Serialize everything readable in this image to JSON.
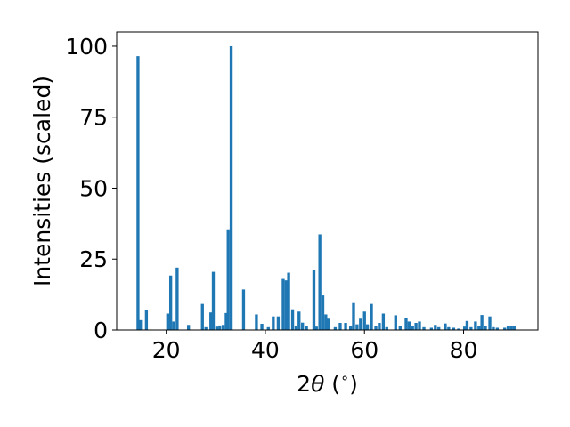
{
  "chart_data": {
    "type": "bar",
    "xlabel": "2θ (°)",
    "xlabel_parts": {
      "prefix": "2",
      "symbol": "θ",
      "suffix": " (",
      "superscript": "∘",
      "end": ")"
    },
    "ylabel": "Intensities (scaled)",
    "xlim": [
      10,
      95
    ],
    "ylim": [
      0,
      105
    ],
    "xticks": [
      20,
      40,
      60,
      80
    ],
    "yticks": [
      0,
      25,
      50,
      75,
      100
    ],
    "bar_width_data": 0.6,
    "bar_color": "#1f77b4",
    "grid": false,
    "legend": "none",
    "bars": [
      {
        "x": 14.3,
        "y": 96.5
      },
      {
        "x": 14.8,
        "y": 3.5
      },
      {
        "x": 16.0,
        "y": 7.0
      },
      {
        "x": 20.3,
        "y": 5.8
      },
      {
        "x": 20.9,
        "y": 19.2
      },
      {
        "x": 21.5,
        "y": 3.0
      },
      {
        "x": 22.2,
        "y": 22.0
      },
      {
        "x": 24.5,
        "y": 1.8
      },
      {
        "x": 27.3,
        "y": 9.2
      },
      {
        "x": 28.0,
        "y": 1.0
      },
      {
        "x": 29.0,
        "y": 6.2
      },
      {
        "x": 29.5,
        "y": 20.5
      },
      {
        "x": 30.2,
        "y": 1.2
      },
      {
        "x": 30.8,
        "y": 1.6
      },
      {
        "x": 31.5,
        "y": 1.8
      },
      {
        "x": 32.1,
        "y": 6.0
      },
      {
        "x": 32.5,
        "y": 35.5
      },
      {
        "x": 33.1,
        "y": 100.0
      },
      {
        "x": 35.6,
        "y": 14.3
      },
      {
        "x": 38.2,
        "y": 5.5
      },
      {
        "x": 39.3,
        "y": 2.2
      },
      {
        "x": 40.6,
        "y": 1.0
      },
      {
        "x": 41.6,
        "y": 4.8
      },
      {
        "x": 42.6,
        "y": 4.8
      },
      {
        "x": 43.6,
        "y": 18.0
      },
      {
        "x": 44.2,
        "y": 17.5
      },
      {
        "x": 44.7,
        "y": 20.2
      },
      {
        "x": 45.5,
        "y": 7.3
      },
      {
        "x": 46.2,
        "y": 1.5
      },
      {
        "x": 46.8,
        "y": 6.5
      },
      {
        "x": 47.5,
        "y": 2.6
      },
      {
        "x": 48.3,
        "y": 1.5
      },
      {
        "x": 49.8,
        "y": 21.2
      },
      {
        "x": 50.3,
        "y": 1.2
      },
      {
        "x": 51.0,
        "y": 33.7
      },
      {
        "x": 51.6,
        "y": 12.2
      },
      {
        "x": 52.2,
        "y": 5.5
      },
      {
        "x": 52.8,
        "y": 4.0
      },
      {
        "x": 54.1,
        "y": 1.0
      },
      {
        "x": 55.1,
        "y": 2.5
      },
      {
        "x": 56.2,
        "y": 2.5
      },
      {
        "x": 57.2,
        "y": 1.5
      },
      {
        "x": 57.8,
        "y": 9.5
      },
      {
        "x": 58.5,
        "y": 2.0
      },
      {
        "x": 59.2,
        "y": 4.0
      },
      {
        "x": 60.0,
        "y": 6.5
      },
      {
        "x": 60.6,
        "y": 2.0
      },
      {
        "x": 61.4,
        "y": 9.2
      },
      {
        "x": 62.3,
        "y": 1.5
      },
      {
        "x": 63.0,
        "y": 2.5
      },
      {
        "x": 63.8,
        "y": 5.8
      },
      {
        "x": 64.5,
        "y": 1.0
      },
      {
        "x": 66.3,
        "y": 5.2
      },
      {
        "x": 67.2,
        "y": 1.5
      },
      {
        "x": 68.4,
        "y": 4.2
      },
      {
        "x": 69.0,
        "y": 3.0
      },
      {
        "x": 69.7,
        "y": 1.5
      },
      {
        "x": 70.4,
        "y": 2.5
      },
      {
        "x": 71.1,
        "y": 3.0
      },
      {
        "x": 72.0,
        "y": 1.0
      },
      {
        "x": 73.5,
        "y": 0.8
      },
      {
        "x": 74.3,
        "y": 1.8
      },
      {
        "x": 75.0,
        "y": 1.0
      },
      {
        "x": 76.3,
        "y": 2.3
      },
      {
        "x": 77.0,
        "y": 1.0
      },
      {
        "x": 78.0,
        "y": 0.8
      },
      {
        "x": 79.0,
        "y": 0.5
      },
      {
        "x": 80.2,
        "y": 1.2
      },
      {
        "x": 80.7,
        "y": 3.2
      },
      {
        "x": 81.5,
        "y": 1.0
      },
      {
        "x": 82.4,
        "y": 3.0
      },
      {
        "x": 83.1,
        "y": 1.5
      },
      {
        "x": 83.7,
        "y": 5.3
      },
      {
        "x": 84.4,
        "y": 1.5
      },
      {
        "x": 85.3,
        "y": 4.8
      },
      {
        "x": 86.0,
        "y": 1.0
      },
      {
        "x": 86.8,
        "y": 0.8
      },
      {
        "x": 88.3,
        "y": 0.8
      },
      {
        "x": 89.0,
        "y": 1.5
      },
      {
        "x": 89.6,
        "y": 1.5
      },
      {
        "x": 90.2,
        "y": 1.5
      }
    ]
  }
}
